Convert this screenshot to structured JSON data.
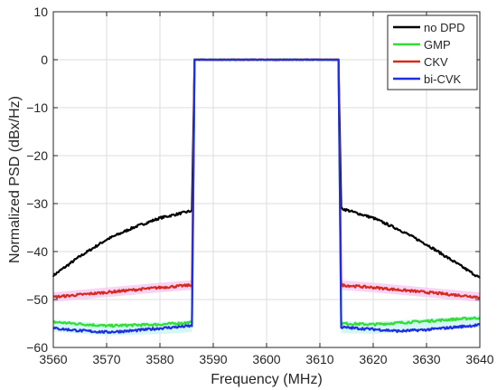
{
  "chart_data": {
    "type": "line",
    "xlabel": "Frequency (MHz)",
    "ylabel": "Normalized PSD (dBx/Hz)",
    "xlim": [
      3560,
      3640
    ],
    "ylim": [
      -60,
      10
    ],
    "xticks": [
      3560,
      3570,
      3580,
      3590,
      3600,
      3610,
      3620,
      3630,
      3640
    ],
    "yticks": [
      10,
      0,
      -10,
      -20,
      -30,
      -40,
      -50,
      -60
    ],
    "xtick_labels": [
      "3560",
      "3570",
      "3580",
      "3590",
      "3600",
      "3610",
      "3620",
      "3630",
      "3640"
    ],
    "ytick_labels": [
      "10",
      "0",
      "−10",
      "−20",
      "−30",
      "−40",
      "−50",
      "−60"
    ],
    "grid": true,
    "legend_position": "top-right",
    "series": [
      {
        "name": "no DPD",
        "color": "#000000",
        "x": [
          3560,
          3565,
          3570,
          3575,
          3580,
          3586,
          3586.5,
          3600,
          3613.5,
          3614,
          3620,
          3625,
          3630,
          3635,
          3640
        ],
        "y": [
          -45,
          -41,
          -37.5,
          -35,
          -33,
          -31.5,
          0,
          0,
          0,
          -31,
          -33,
          -35.5,
          -38.5,
          -42,
          -45.5
        ]
      },
      {
        "name": "GMP",
        "color": "#33dd33",
        "x": [
          3560,
          3570,
          3580,
          3586,
          3586.5,
          3600,
          3613.5,
          3614,
          3620,
          3630,
          3640
        ],
        "y": [
          -54.7,
          -55.5,
          -55.2,
          -54.8,
          0,
          0,
          0,
          -55.0,
          -55.2,
          -54.5,
          -53.8
        ],
        "band": [
          -2.0,
          0.5
        ]
      },
      {
        "name": "CKV",
        "color": "#d62a1e",
        "x": [
          3560,
          3570,
          3580,
          3586,
          3586.5,
          3600,
          3613.5,
          3614,
          3620,
          3630,
          3640
        ],
        "y": [
          -49.5,
          -48.5,
          -47.5,
          -47.0,
          0,
          0,
          0,
          -47.0,
          -47.5,
          -48.5,
          -49.5
        ],
        "band": [
          -1.0,
          1.0
        ]
      },
      {
        "name": "bi-CVK",
        "color": "#1f2fe0",
        "x": [
          3560,
          3565,
          3570,
          3575,
          3580,
          3586,
          3586.5,
          3600,
          3613.5,
          3614,
          3620,
          3625,
          3630,
          3635,
          3640
        ],
        "y": [
          -56,
          -56.5,
          -56.8,
          -56.5,
          -56,
          -55.5,
          0,
          0,
          0,
          -55.8,
          -56.2,
          -56.6,
          -56.3,
          -55.8,
          -55.3
        ]
      }
    ]
  }
}
